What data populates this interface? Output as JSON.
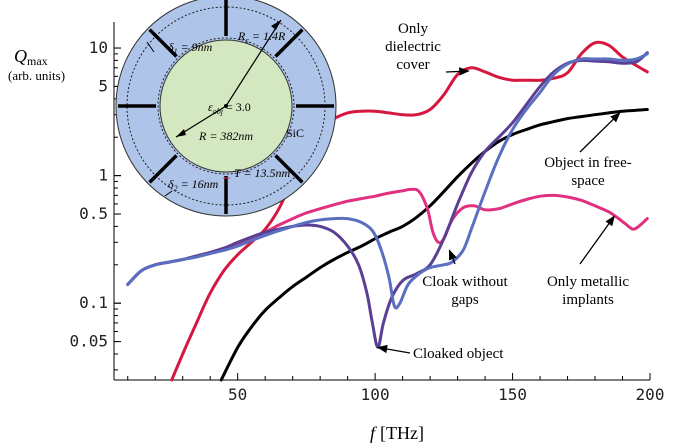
{
  "chart_data": {
    "type": "line",
    "y_scale": "log",
    "xlim": [
      5,
      200
    ],
    "ylim": [
      0.025,
      16
    ],
    "xlabel": "f [THz]",
    "xlabel_var": "f",
    "xlabel_unit": "[THz]",
    "ylabel_main": "Q",
    "ylabel_sub": "max",
    "ylabel_units": "(arb. units)",
    "x_ticks": [
      50,
      100,
      150,
      200
    ],
    "x_tick_labels": [
      "50",
      "100",
      "150",
      "200"
    ],
    "y_ticks": [
      0.05,
      0.1,
      0.5,
      1,
      5,
      10
    ],
    "y_tick_labels": [
      "0.05",
      "0.1",
      "0.5",
      "1",
      "5",
      "10"
    ],
    "series": [
      {
        "name": "Only dielectric cover",
        "color": "#d6183f",
        "points": [
          [
            26,
            0.025
          ],
          [
            30,
            0.04
          ],
          [
            35,
            0.07
          ],
          [
            40,
            0.12
          ],
          [
            45,
            0.18
          ],
          [
            50,
            0.24
          ],
          [
            55,
            0.3
          ],
          [
            60,
            0.38
          ],
          [
            65,
            0.55
          ],
          [
            70,
            0.95
          ],
          [
            75,
            1.7
          ],
          [
            80,
            2.4
          ],
          [
            85,
            2.8
          ],
          [
            90,
            3.1
          ],
          [
            95,
            3.2
          ],
          [
            100,
            3.2
          ],
          [
            105,
            3.1
          ],
          [
            110,
            3.0
          ],
          [
            115,
            3.0
          ],
          [
            120,
            3.3
          ],
          [
            125,
            4.3
          ],
          [
            130,
            6.2
          ],
          [
            135,
            7.0
          ],
          [
            140,
            6.5
          ],
          [
            145,
            5.9
          ],
          [
            150,
            5.6
          ],
          [
            155,
            5.6
          ],
          [
            160,
            5.6
          ],
          [
            165,
            5.8
          ],
          [
            170,
            6.4
          ],
          [
            175,
            9.0
          ],
          [
            180,
            11.0
          ],
          [
            185,
            10.5
          ],
          [
            190,
            8.5
          ],
          [
            195,
            7.3
          ],
          [
            199,
            6.5
          ]
        ]
      },
      {
        "name": "Object in free-space",
        "color": "#000000",
        "points": [
          [
            44,
            0.025
          ],
          [
            50,
            0.045
          ],
          [
            55,
            0.065
          ],
          [
            60,
            0.088
          ],
          [
            65,
            0.11
          ],
          [
            70,
            0.135
          ],
          [
            75,
            0.16
          ],
          [
            80,
            0.19
          ],
          [
            85,
            0.22
          ],
          [
            90,
            0.25
          ],
          [
            95,
            0.28
          ],
          [
            100,
            0.32
          ],
          [
            105,
            0.36
          ],
          [
            110,
            0.4
          ],
          [
            115,
            0.47
          ],
          [
            120,
            0.58
          ],
          [
            125,
            0.75
          ],
          [
            130,
            0.98
          ],
          [
            135,
            1.25
          ],
          [
            140,
            1.55
          ],
          [
            145,
            1.85
          ],
          [
            150,
            2.1
          ],
          [
            155,
            2.3
          ],
          [
            160,
            2.5
          ],
          [
            165,
            2.65
          ],
          [
            170,
            2.8
          ],
          [
            175,
            2.9
          ],
          [
            180,
            3.0
          ],
          [
            185,
            3.1
          ],
          [
            190,
            3.2
          ],
          [
            195,
            3.25
          ],
          [
            199,
            3.3
          ]
        ]
      },
      {
        "name": "Only metallic implants",
        "color": "#e0307f",
        "points": [
          [
            10,
            0.14
          ],
          [
            15,
            0.18
          ],
          [
            20,
            0.2
          ],
          [
            25,
            0.21
          ],
          [
            30,
            0.22
          ],
          [
            35,
            0.235
          ],
          [
            40,
            0.25
          ],
          [
            45,
            0.27
          ],
          [
            50,
            0.29
          ],
          [
            55,
            0.32
          ],
          [
            60,
            0.36
          ],
          [
            65,
            0.41
          ],
          [
            70,
            0.46
          ],
          [
            75,
            0.51
          ],
          [
            80,
            0.55
          ],
          [
            85,
            0.59
          ],
          [
            90,
            0.63
          ],
          [
            95,
            0.66
          ],
          [
            100,
            0.69
          ],
          [
            105,
            0.73
          ],
          [
            110,
            0.76
          ],
          [
            113,
            0.78
          ],
          [
            116,
            0.75
          ],
          [
            119,
            0.55
          ],
          [
            121,
            0.36
          ],
          [
            123,
            0.3
          ],
          [
            125,
            0.32
          ],
          [
            128,
            0.45
          ],
          [
            132,
            0.56
          ],
          [
            136,
            0.58
          ],
          [
            140,
            0.54
          ],
          [
            145,
            0.55
          ],
          [
            150,
            0.6
          ],
          [
            155,
            0.65
          ],
          [
            160,
            0.69
          ],
          [
            165,
            0.7
          ],
          [
            170,
            0.68
          ],
          [
            175,
            0.64
          ],
          [
            180,
            0.58
          ],
          [
            185,
            0.52
          ],
          [
            188,
            0.47
          ],
          [
            191,
            0.42
          ],
          [
            194,
            0.38
          ],
          [
            197,
            0.42
          ],
          [
            199,
            0.46
          ]
        ]
      },
      {
        "name": "Cloaked object",
        "color": "#5a3f94",
        "points": [
          [
            10,
            0.14
          ],
          [
            15,
            0.18
          ],
          [
            20,
            0.2
          ],
          [
            25,
            0.21
          ],
          [
            30,
            0.22
          ],
          [
            35,
            0.235
          ],
          [
            40,
            0.25
          ],
          [
            45,
            0.27
          ],
          [
            50,
            0.3
          ],
          [
            55,
            0.33
          ],
          [
            60,
            0.36
          ],
          [
            65,
            0.38
          ],
          [
            70,
            0.4
          ],
          [
            75,
            0.41
          ],
          [
            80,
            0.4
          ],
          [
            85,
            0.36
          ],
          [
            90,
            0.28
          ],
          [
            94,
            0.2
          ],
          [
            97,
            0.12
          ],
          [
            99,
            0.07
          ],
          [
            101,
            0.045
          ],
          [
            103,
            0.07
          ],
          [
            106,
            0.11
          ],
          [
            110,
            0.15
          ],
          [
            115,
            0.17
          ],
          [
            120,
            0.2
          ],
          [
            125,
            0.32
          ],
          [
            130,
            0.6
          ],
          [
            135,
            1.05
          ],
          [
            140,
            1.55
          ],
          [
            145,
            2.0
          ],
          [
            150,
            2.6
          ],
          [
            155,
            3.6
          ],
          [
            160,
            5.0
          ],
          [
            165,
            6.5
          ],
          [
            170,
            7.6
          ],
          [
            175,
            8.0
          ],
          [
            180,
            7.9
          ],
          [
            185,
            7.8
          ],
          [
            190,
            7.6
          ],
          [
            195,
            7.8
          ],
          [
            199,
            9.2
          ]
        ]
      },
      {
        "name": "Cloak without gaps",
        "color": "#5a6fc0",
        "points": [
          [
            10,
            0.14
          ],
          [
            15,
            0.18
          ],
          [
            20,
            0.2
          ],
          [
            25,
            0.21
          ],
          [
            30,
            0.22
          ],
          [
            35,
            0.23
          ],
          [
            40,
            0.245
          ],
          [
            45,
            0.26
          ],
          [
            50,
            0.28
          ],
          [
            55,
            0.31
          ],
          [
            60,
            0.34
          ],
          [
            65,
            0.37
          ],
          [
            70,
            0.4
          ],
          [
            75,
            0.43
          ],
          [
            80,
            0.45
          ],
          [
            85,
            0.46
          ],
          [
            90,
            0.46
          ],
          [
            95,
            0.43
          ],
          [
            99,
            0.37
          ],
          [
            102,
            0.27
          ],
          [
            105,
            0.16
          ],
          [
            107,
            0.095
          ],
          [
            109,
            0.1
          ],
          [
            112,
            0.14
          ],
          [
            116,
            0.17
          ],
          [
            120,
            0.19
          ],
          [
            125,
            0.2
          ],
          [
            128,
            0.21
          ],
          [
            132,
            0.26
          ],
          [
            135,
            0.38
          ],
          [
            140,
            0.75
          ],
          [
            145,
            1.4
          ],
          [
            150,
            2.3
          ],
          [
            155,
            3.3
          ],
          [
            160,
            4.5
          ],
          [
            165,
            6.2
          ],
          [
            170,
            7.5
          ],
          [
            175,
            8.2
          ],
          [
            180,
            8.2
          ],
          [
            185,
            8.2
          ],
          [
            190,
            8.0
          ],
          [
            195,
            8.2
          ],
          [
            199,
            9.0
          ]
        ]
      }
    ],
    "annotations": [
      {
        "lines": [
          "Only",
          "dielectric",
          "cover"
        ],
        "target": [
          134,
          6.6
        ]
      },
      {
        "lines": [
          "Object in free-",
          "space"
        ],
        "target": [
          189,
          3.1
        ]
      },
      {
        "lines": [
          "Cloak without",
          "gaps"
        ],
        "target": [
          127,
          0.26
        ]
      },
      {
        "lines": [
          "Only metallic",
          "implants"
        ],
        "target": [
          187,
          0.48
        ]
      },
      {
        "lines": [
          "Cloaked object"
        ],
        "target": [
          101,
          0.045
        ]
      }
    ]
  },
  "inset": {
    "eps_obj_var": "ε",
    "eps_obj_sub": "obj",
    "eps_obj_val": " = 3.0",
    "radius": "R = 382nm",
    "rc_var": "R",
    "rc_sub": "c",
    "rc_val": " = 1.4R",
    "delta1_var": "δ",
    "delta1_sub": "1",
    "delta1_val": " = 9nm",
    "delta2_var": "δ",
    "delta2_sub": "2",
    "delta2_val": " = 16nm",
    "thickness": "T = 13.5nm",
    "material": "SiC",
    "shell_color": "#aec4e8",
    "core_color": "#d3e8c0"
  }
}
